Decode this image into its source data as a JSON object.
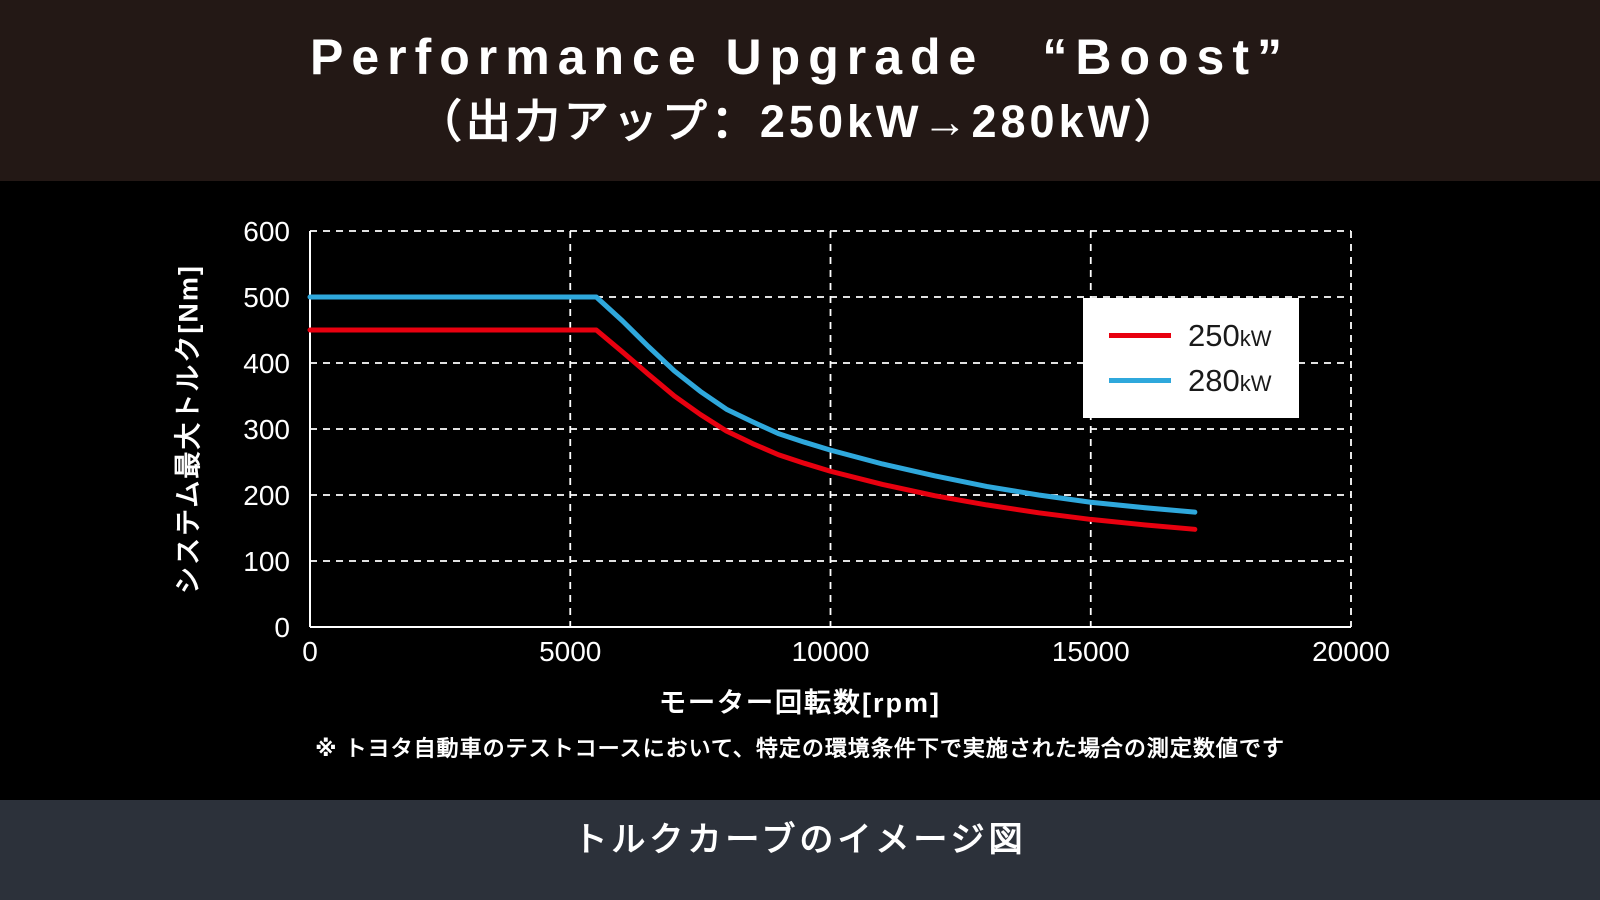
{
  "header": {
    "title_line1": "Performance Upgrade　“Boost”",
    "title_line2": "（出力アップ：250kW→280kW）"
  },
  "footnote": "※ トヨタ自動車のテストコースにおいて、特定の環境条件下で実施された場合の測定数値です",
  "caption": "トルクカーブのイメージ図",
  "colors": {
    "header_bg": "#231815",
    "chart_bg": "#000000",
    "footer_bg": "#2c313a",
    "grid": "#ffffff",
    "axis": "#ffffff",
    "red_series": "#e8000f",
    "blue_series": "#2fa8dc",
    "legend_bg": "#ffffff"
  },
  "chart_data": {
    "type": "line",
    "title": "",
    "xlabel": "モーター回転数[rpm]",
    "ylabel": "システム最大トルク[Nm]",
    "xlim": [
      0,
      20000
    ],
    "ylim": [
      0,
      600
    ],
    "xticks": [
      0,
      5000,
      10000,
      15000,
      20000
    ],
    "yticks": [
      0,
      100,
      200,
      300,
      400,
      500,
      600
    ],
    "grid": "dashed",
    "legend_position": "inside-upper-right",
    "series": [
      {
        "name": "250kW",
        "label_value": "250",
        "label_unit": "kW",
        "color": "#e8000f",
        "points": [
          [
            0,
            450
          ],
          [
            5500,
            450
          ],
          [
            6000,
            417
          ],
          [
            6500,
            383
          ],
          [
            7000,
            350
          ],
          [
            7500,
            322
          ],
          [
            8000,
            297
          ],
          [
            8500,
            278
          ],
          [
            9000,
            261
          ],
          [
            9500,
            248
          ],
          [
            10000,
            236
          ],
          [
            11000,
            216
          ],
          [
            12000,
            199
          ],
          [
            13000,
            185
          ],
          [
            14000,
            173
          ],
          [
            15000,
            163
          ],
          [
            16000,
            155
          ],
          [
            17000,
            148
          ]
        ]
      },
      {
        "name": "280kW",
        "label_value": "280",
        "label_unit": "kW",
        "color": "#2fa8dc",
        "points": [
          [
            0,
            500
          ],
          [
            5500,
            500
          ],
          [
            6000,
            464
          ],
          [
            6500,
            425
          ],
          [
            7000,
            388
          ],
          [
            7500,
            357
          ],
          [
            8000,
            330
          ],
          [
            8500,
            311
          ],
          [
            9000,
            293
          ],
          [
            9500,
            280
          ],
          [
            10000,
            268
          ],
          [
            11000,
            247
          ],
          [
            12000,
            229
          ],
          [
            13000,
            213
          ],
          [
            14000,
            200
          ],
          [
            15000,
            189
          ],
          [
            16000,
            181
          ],
          [
            17000,
            174
          ]
        ]
      }
    ]
  }
}
